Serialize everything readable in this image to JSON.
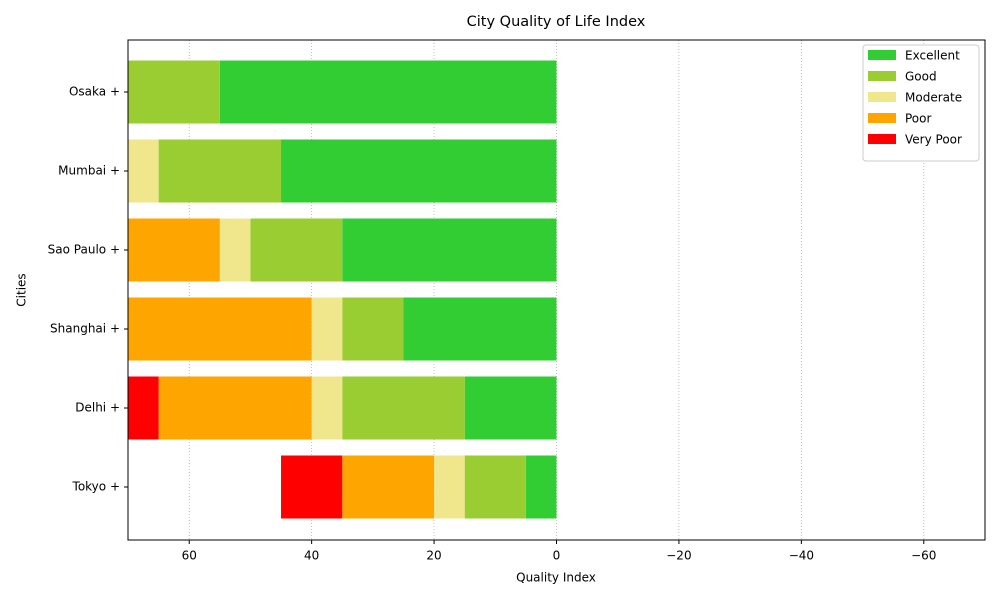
{
  "chart_data": {
    "type": "stacked_barh",
    "title": "City Quality of Life Index",
    "xlabel": "Quality Index",
    "ylabel": "Cities",
    "categories": [
      "Tokyo +",
      "Delhi +",
      "Shanghai +",
      "Sao Paulo +",
      "Mumbai +",
      "Osaka +"
    ],
    "series": [
      {
        "name": "Excellent",
        "color": "#32cd32",
        "values": [
          5,
          15,
          25,
          35,
          45,
          55
        ]
      },
      {
        "name": "Good",
        "color": "#9acd32",
        "values": [
          10,
          20,
          10,
          15,
          20,
          15
        ]
      },
      {
        "name": "Moderate",
        "color": "#f0e68c",
        "values": [
          5,
          5,
          5,
          5,
          5,
          0
        ]
      },
      {
        "name": "Poor",
        "color": "#ffa500",
        "values": [
          15,
          25,
          30,
          15,
          0,
          0
        ]
      },
      {
        "name": "Very Poor",
        "color": "#ff0000",
        "values": [
          10,
          10,
          0,
          0,
          0,
          0
        ]
      }
    ],
    "xlim": [
      70,
      -70
    ],
    "xticks": [
      60,
      40,
      20,
      0,
      {
        "value": -20,
        "label": "−20"
      },
      {
        "value": -40,
        "label": "−40"
      },
      {
        "value": -60,
        "label": "−60"
      }
    ],
    "grid": true,
    "legend": "upper right"
  }
}
